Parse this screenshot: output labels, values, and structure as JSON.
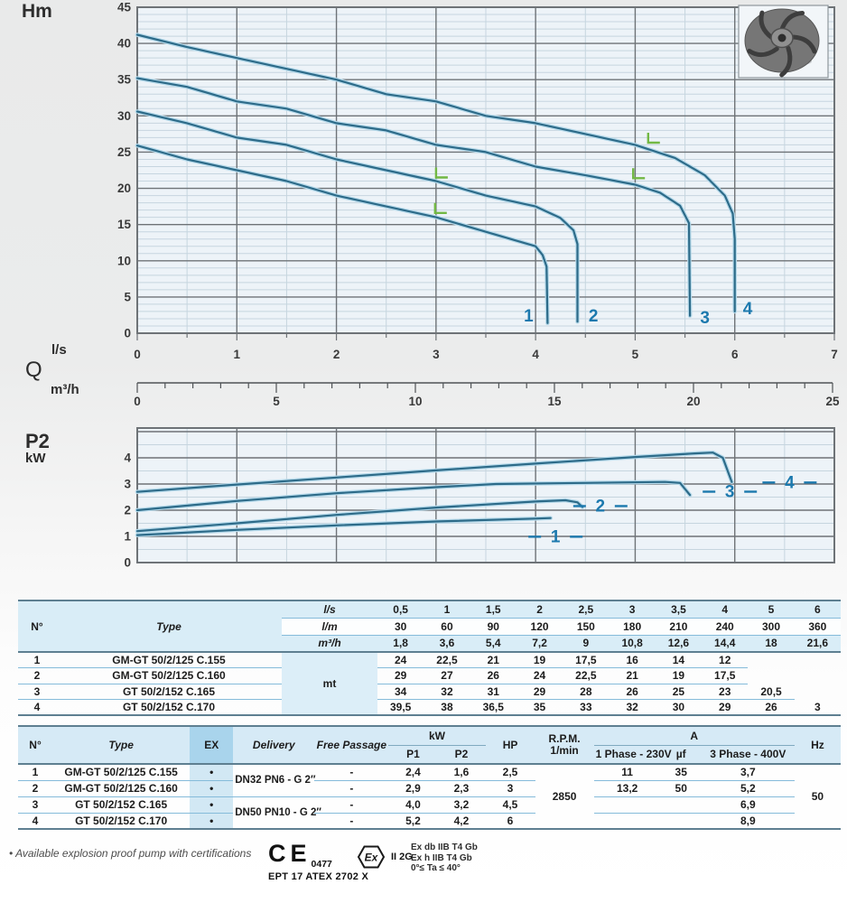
{
  "palette": {
    "plot_bg": "#edf3f8",
    "grid_minor": "#c6d5df",
    "grid_major": "#6e7377",
    "curve": "#2d6b89",
    "curve_halo": "#b5d9ea",
    "label_blue": "#1c79ae",
    "marker_green": "#72b844",
    "table_line": "#85bbda",
    "table_border": "#5e7f91",
    "header_bg": "#d9edf7",
    "ex_header_bg": "#a9d4ec"
  },
  "chart_data": [
    {
      "type": "line",
      "ylabel": "Hm",
      "xlabel": "Q",
      "x_units": [
        "l/s",
        "m³/h"
      ],
      "xlim": [
        0,
        7
      ],
      "x_tick_step": 1,
      "x_minor_step": 0.5,
      "ylim": [
        0,
        45
      ],
      "y_tick_step": 5,
      "y_minor_step": 1,
      "x2_axis": {
        "lim": [
          0,
          25
        ],
        "major": 5,
        "minor": 1
      },
      "series": [
        {
          "name": "1",
          "points": [
            [
              0,
              25.9
            ],
            [
              0.5,
              24
            ],
            [
              1,
              22.5
            ],
            [
              1.5,
              21
            ],
            [
              2,
              19
            ],
            [
              2.5,
              17.5
            ],
            [
              3,
              16
            ],
            [
              3.5,
              14
            ],
            [
              4,
              12
            ],
            [
              4.07,
              10.8
            ],
            [
              4.11,
              9.2
            ],
            [
              4.12,
              1.4
            ]
          ]
        },
        {
          "name": "2",
          "points": [
            [
              0,
              30.6
            ],
            [
              0.5,
              29
            ],
            [
              1,
              27
            ],
            [
              1.5,
              26
            ],
            [
              2,
              24
            ],
            [
              2.5,
              22.5
            ],
            [
              3,
              21
            ],
            [
              3.5,
              19
            ],
            [
              4,
              17.5
            ],
            [
              4.25,
              15.9
            ],
            [
              4.38,
              14.2
            ],
            [
              4.42,
              12.3
            ],
            [
              4.42,
              1.6
            ]
          ]
        },
        {
          "name": "3",
          "points": [
            [
              0,
              35.2
            ],
            [
              0.5,
              34
            ],
            [
              1,
              32
            ],
            [
              1.5,
              31
            ],
            [
              2,
              29
            ],
            [
              2.5,
              28
            ],
            [
              3,
              26
            ],
            [
              3.5,
              25
            ],
            [
              4,
              23
            ],
            [
              4.5,
              21.8
            ],
            [
              5,
              20.5
            ],
            [
              5.25,
              19.4
            ],
            [
              5.45,
              17.6
            ],
            [
              5.54,
              15.2
            ],
            [
              5.55,
              2.4
            ]
          ]
        },
        {
          "name": "4",
          "points": [
            [
              0,
              41.2
            ],
            [
              0.5,
              39.5
            ],
            [
              1,
              38
            ],
            [
              1.5,
              36.5
            ],
            [
              2,
              35
            ],
            [
              2.5,
              33
            ],
            [
              3,
              32
            ],
            [
              3.5,
              30
            ],
            [
              4,
              29
            ],
            [
              4.5,
              27.5
            ],
            [
              5,
              26
            ],
            [
              5.4,
              24.2
            ],
            [
              5.7,
              21.8
            ],
            [
              5.9,
              19
            ],
            [
              5.98,
              16.5
            ],
            [
              6,
              13
            ],
            [
              6,
              3
            ]
          ]
        }
      ],
      "min_flow_markers": [
        [
          2.99,
          16.6
        ],
        [
          3.0,
          21.5
        ],
        [
          4.98,
          21.4
        ],
        [
          5.13,
          26.3
        ]
      ],
      "curve_labels": [
        {
          "text": "1",
          "x": 3.93,
          "y": 1.6
        },
        {
          "text": "2",
          "x": 4.58,
          "y": 1.6
        },
        {
          "text": "3",
          "x": 5.7,
          "y": 1.4
        },
        {
          "text": "4",
          "x": 6.13,
          "y": 2.6
        }
      ]
    },
    {
      "type": "line",
      "ylabel": "P2",
      "y_unit": "kW",
      "xlim": [
        0,
        7
      ],
      "x_tick_step": 1,
      "x_minor_step": 0.5,
      "ylim": [
        0,
        5.1
      ],
      "y_tick_step": 1,
      "y_minor_step": 0.5,
      "y_labeled_max": 4,
      "series": [
        {
          "name": "1",
          "points": [
            [
              0,
              1.05
            ],
            [
              1,
              1.25
            ],
            [
              2,
              1.42
            ],
            [
              3,
              1.57
            ],
            [
              4,
              1.68
            ],
            [
              4.15,
              1.7
            ]
          ]
        },
        {
          "name": "2",
          "points": [
            [
              0,
              1.2
            ],
            [
              1,
              1.5
            ],
            [
              2,
              1.82
            ],
            [
              3,
              2.1
            ],
            [
              4,
              2.33
            ],
            [
              4.3,
              2.38
            ],
            [
              4.42,
              2.3
            ],
            [
              4.47,
              2.12
            ]
          ]
        },
        {
          "name": "3",
          "points": [
            [
              0,
              2.0
            ],
            [
              1,
              2.35
            ],
            [
              2,
              2.65
            ],
            [
              3,
              2.88
            ],
            [
              3.6,
              3.0
            ],
            [
              4.5,
              3.04
            ],
            [
              5.3,
              3.08
            ],
            [
              5.45,
              3.04
            ],
            [
              5.55,
              2.58
            ]
          ]
        },
        {
          "name": "4",
          "points": [
            [
              0,
              2.7
            ],
            [
              1,
              2.98
            ],
            [
              2,
              3.25
            ],
            [
              3,
              3.52
            ],
            [
              4,
              3.78
            ],
            [
              5,
              4.03
            ],
            [
              5.6,
              4.17
            ],
            [
              5.78,
              4.2
            ],
            [
              5.88,
              4.0
            ],
            [
              5.97,
              3.08
            ]
          ]
        }
      ],
      "curve_labels": [
        {
          "text": "1",
          "x": 4.2,
          "y": 0.78
        },
        {
          "text": "2",
          "x": 4.65,
          "y": 1.95
        },
        {
          "text": "3",
          "x": 5.95,
          "y": 2.5
        },
        {
          "text": "4",
          "x": 6.55,
          "y": 2.85
        }
      ]
    }
  ],
  "table_flow": {
    "col_no": "N°",
    "col_type": "Type",
    "unit_label": "mt",
    "unit_rows": [
      {
        "label": "l/s",
        "values": [
          "0,5",
          "1",
          "1,5",
          "2",
          "2,5",
          "3",
          "3,5",
          "4",
          "5",
          "6"
        ]
      },
      {
        "label": "l/m",
        "values": [
          "30",
          "60",
          "90",
          "120",
          "150",
          "180",
          "210",
          "240",
          "300",
          "360"
        ]
      },
      {
        "label": "m³/h",
        "values": [
          "1,8",
          "3,6",
          "5,4",
          "7,2",
          "9",
          "10,8",
          "12,6",
          "14,4",
          "18",
          "21,6"
        ]
      }
    ],
    "rows": [
      {
        "n": "1",
        "type": "GM-GT 50/2/125 C.155",
        "values": [
          "24",
          "22,5",
          "21",
          "19",
          "17,5",
          "16",
          "14",
          "12",
          "",
          ""
        ]
      },
      {
        "n": "2",
        "type": "GM-GT 50/2/125 C.160",
        "values": [
          "29",
          "27",
          "26",
          "24",
          "22,5",
          "21",
          "19",
          "17,5",
          "",
          ""
        ]
      },
      {
        "n": "3",
        "type": "GT 50/2/152 C.165",
        "values": [
          "34",
          "32",
          "31",
          "29",
          "28",
          "26",
          "25",
          "23",
          "20,5",
          ""
        ]
      },
      {
        "n": "4",
        "type": "GT 50/2/152 C.170",
        "values": [
          "39,5",
          "38",
          "36,5",
          "35",
          "33",
          "32",
          "30",
          "29",
          "26",
          "3"
        ]
      }
    ]
  },
  "table_specs": {
    "headers": {
      "no": "N°",
      "type": "Type",
      "ex": "EX",
      "delivery": "Delivery",
      "free_passage": "Free Passage",
      "kw": "kW",
      "p1": "P1",
      "p2": "P2",
      "hp": "HP",
      "rpm_1": "R.P.M.",
      "rpm_2": "1/min",
      "a": "A",
      "ph1": "1 Phase - 230V",
      "uf": "µf",
      "ph3": "3 Phase - 400V",
      "hz": "Hz"
    },
    "delivery_groups": [
      {
        "text": "DN32 PN6 - G 2″"
      },
      {
        "text": "DN50 PN10 - G 2″"
      }
    ],
    "rpm": "2850",
    "hz": "50",
    "rows": [
      {
        "n": "1",
        "type": "GM-GT 50/2/125 C.155",
        "ex": "•",
        "free": "-",
        "p1": "2,4",
        "p2": "1,6",
        "hp": "2,5",
        "ph1": "11",
        "uf": "35",
        "ph3": "3,7"
      },
      {
        "n": "2",
        "type": "GM-GT 50/2/125 C.160",
        "ex": "•",
        "free": "-",
        "p1": "2,9",
        "p2": "2,3",
        "hp": "3",
        "ph1": "13,2",
        "uf": "50",
        "ph3": "5,2"
      },
      {
        "n": "3",
        "type": "GT 50/2/152 C.165",
        "ex": "•",
        "free": "-",
        "p1": "4,0",
        "p2": "3,2",
        "hp": "4,5",
        "ph1": "",
        "uf": "",
        "ph3": "6,9"
      },
      {
        "n": "4",
        "type": "GT 50/2/152 C.170",
        "ex": "•",
        "free": "-",
        "p1": "5,2",
        "p2": "4,2",
        "hp": "6",
        "ph1": "",
        "uf": "",
        "ph3": "8,9"
      }
    ]
  },
  "footer": {
    "note": "• Available explosion proof pump with certifications",
    "ce_mark": "CE",
    "ce_number": "0477",
    "atex_code": "EPT 17 ATEX 2702 X",
    "ex_symbol": "Ex",
    "ex_class": "II 2G",
    "cert_lines": [
      "Ex db IIB T4 Gb",
      "Ex h IIB T4 Gb",
      "0°≤ Ta ≤ 40°"
    ]
  }
}
